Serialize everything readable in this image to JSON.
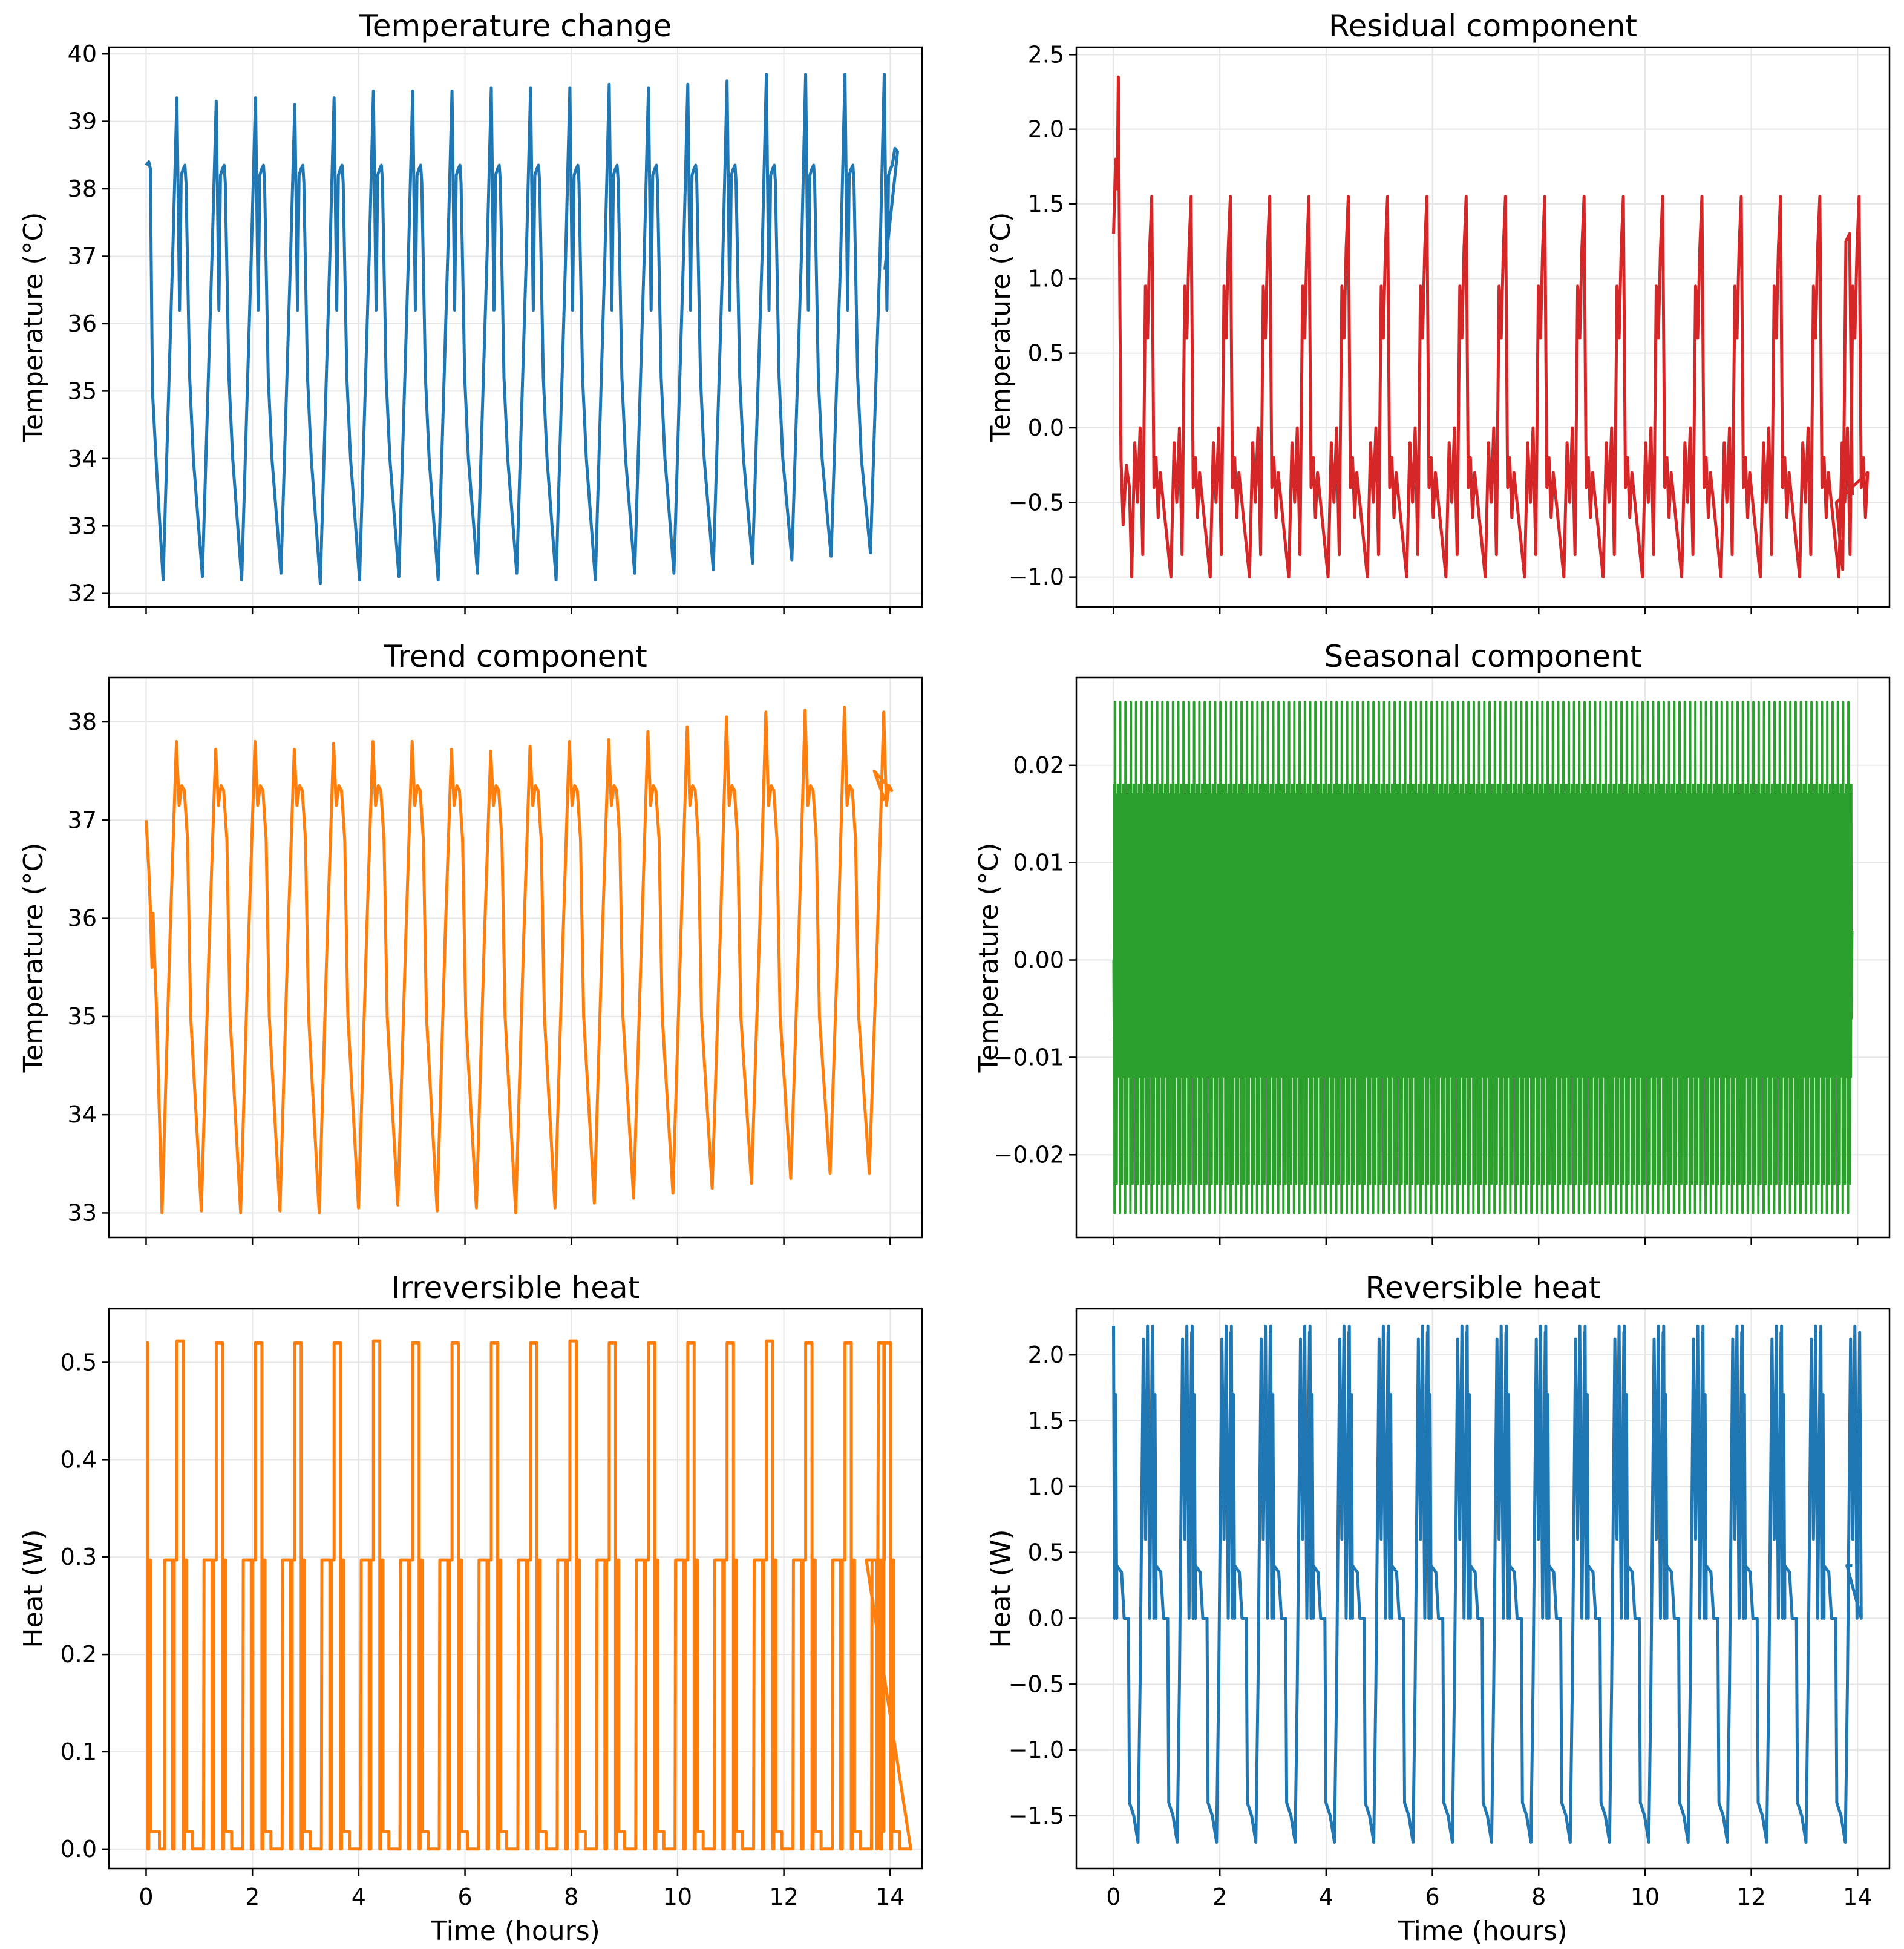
{
  "chart_data": [
    {
      "id": "temperature",
      "type": "line",
      "title": "Temperature change",
      "xlabel": "",
      "ylabel": "Temperature (°C)",
      "color": "#1f77b4",
      "xlim": [
        -0.7,
        14.6
      ],
      "ylim": [
        31.8,
        40.1
      ],
      "yticks": [
        32,
        33,
        34,
        35,
        36,
        37,
        38,
        39,
        40
      ],
      "yticklabels": [
        "32",
        "33",
        "34",
        "35",
        "36",
        "37",
        "38",
        "39",
        "40"
      ],
      "xticks": [
        0,
        2,
        4,
        6,
        8,
        10,
        12,
        14
      ],
      "xticklabels": [],
      "grid": true,
      "series": [
        {
          "name": "Temperature",
          "x_range": [
            0,
            13.9
          ],
          "cycles": 19,
          "peaks": [
            39.35,
            39.3,
            39.35,
            39.25,
            39.35,
            39.45,
            39.45,
            39.45,
            39.5,
            39.5,
            39.5,
            39.55,
            39.5,
            39.55,
            39.6,
            39.7,
            39.7,
            39.7,
            39.7
          ],
          "troughs": [
            32.2,
            32.25,
            32.2,
            32.3,
            32.15,
            32.2,
            32.25,
            32.2,
            32.3,
            32.3,
            32.2,
            32.2,
            32.3,
            32.3,
            32.35,
            32.45,
            32.5,
            32.55,
            32.6
          ]
        }
      ]
    },
    {
      "id": "residual",
      "type": "line",
      "title": "Residual component",
      "xlabel": "",
      "ylabel": "Temperature (°C)",
      "color": "#d62728",
      "xlim": [
        -0.7,
        14.6
      ],
      "ylim": [
        -1.2,
        2.55
      ],
      "yticks": [
        -1.0,
        -0.5,
        0.0,
        0.5,
        1.0,
        1.5,
        2.0,
        2.5
      ],
      "yticklabels": [
        "−1.0",
        "−0.5",
        "0.0",
        "0.5",
        "1.0",
        "1.5",
        "2.0",
        "2.5"
      ],
      "xticks": [
        0,
        2,
        4,
        6,
        8,
        10,
        12,
        14
      ],
      "xticklabels": [],
      "grid": true,
      "series": [
        {
          "name": "Residual",
          "x_range": [
            0,
            13.9
          ],
          "start": 1.3,
          "initial_peak": 2.35,
          "cycles": 19,
          "peak": 1.55,
          "trough": -1.0
        }
      ]
    },
    {
      "id": "trend",
      "type": "line",
      "title": "Trend component",
      "xlabel": "",
      "ylabel": "Temperature (°C)",
      "color": "#ff7f0e",
      "xlim": [
        -0.7,
        14.6
      ],
      "ylim": [
        32.75,
        38.45
      ],
      "yticks": [
        33,
        34,
        35,
        36,
        37,
        38
      ],
      "yticklabels": [
        "33",
        "34",
        "35",
        "36",
        "37",
        "38"
      ],
      "xticks": [
        0,
        2,
        4,
        6,
        8,
        10,
        12,
        14
      ],
      "xticklabels": [],
      "grid": true,
      "series": [
        {
          "name": "Trend",
          "x_range": [
            0,
            13.9
          ],
          "start": 37.0,
          "end": 37.2,
          "cycles": 19,
          "peaks": [
            37.8,
            37.72,
            37.8,
            37.72,
            37.78,
            37.8,
            37.8,
            37.72,
            37.7,
            37.75,
            37.8,
            37.82,
            37.9,
            37.95,
            38.05,
            38.1,
            38.12,
            38.15,
            38.1
          ],
          "troughs": [
            33.0,
            33.02,
            33.0,
            33.02,
            33.0,
            33.05,
            33.08,
            33.02,
            33.05,
            33.0,
            33.05,
            33.1,
            33.15,
            33.2,
            33.25,
            33.3,
            33.35,
            33.4,
            33.4
          ]
        }
      ]
    },
    {
      "id": "seasonal",
      "type": "line",
      "title": "Seasonal component",
      "xlabel": "",
      "ylabel": "Temperature (°C)",
      "color": "#2ca02c",
      "xlim": [
        -0.7,
        14.6
      ],
      "ylim": [
        -0.0285,
        0.029
      ],
      "yticks": [
        -0.02,
        -0.01,
        0.0,
        0.01,
        0.02
      ],
      "yticklabels": [
        "−0.02",
        "−0.01",
        "0.00",
        "0.01",
        "0.02"
      ],
      "xticks": [
        0,
        2,
        4,
        6,
        8,
        10,
        12,
        14
      ],
      "xticklabels": [],
      "grid": true,
      "series": [
        {
          "name": "Seasonal",
          "x_range": [
            0,
            13.9
          ],
          "max": 0.0265,
          "min": -0.026,
          "cycles": 140
        }
      ]
    },
    {
      "id": "irreversible",
      "type": "line",
      "title": "Irreversible heat",
      "xlabel": "Time (hours)",
      "ylabel": "Heat (W)",
      "color": "#ff7f0e",
      "xlim": [
        -0.7,
        14.6
      ],
      "ylim": [
        -0.02,
        0.555
      ],
      "yticks": [
        0.0,
        0.1,
        0.2,
        0.3,
        0.4,
        0.5
      ],
      "yticklabels": [
        "0.0",
        "0.1",
        "0.2",
        "0.3",
        "0.4",
        "0.5"
      ],
      "xticks": [
        0,
        2,
        4,
        6,
        8,
        10,
        12,
        14
      ],
      "xticklabels": [
        "0",
        "2",
        "4",
        "6",
        "8",
        "10",
        "12",
        "14"
      ],
      "grid": true,
      "series": [
        {
          "name": "Irreversible heat",
          "x_range": [
            0,
            13.9
          ],
          "high": 0.52,
          "mid": 0.297,
          "low_step": 0.018,
          "base": 0.0,
          "cycles": 19
        }
      ]
    },
    {
      "id": "reversible",
      "type": "line",
      "title": "Reversible heat",
      "xlabel": "Time (hours)",
      "ylabel": "Heat (W)",
      "color": "#1f77b4",
      "xlim": [
        -0.7,
        14.6
      ],
      "ylim": [
        -1.9,
        2.35
      ],
      "yticks": [
        -1.5,
        -1.0,
        -0.5,
        0.0,
        0.5,
        1.0,
        1.5,
        2.0
      ],
      "yticklabels": [
        "−1.5",
        "−1.0",
        "−0.5",
        "0.0",
        "0.5",
        "1.0",
        "1.5",
        "2.0"
      ],
      "xticks": [
        0,
        2,
        4,
        6,
        8,
        10,
        12,
        14
      ],
      "xticklabels": [
        "0",
        "2",
        "4",
        "6",
        "8",
        "10",
        "12",
        "14"
      ],
      "grid": true,
      "series": [
        {
          "name": "Reversible heat",
          "x_range": [
            0,
            13.9
          ],
          "max": 2.22,
          "plateau_high": 0.4,
          "zero": 0.0,
          "plateau_low": -1.4,
          "min": -1.7,
          "cycles": 19
        }
      ]
    }
  ]
}
